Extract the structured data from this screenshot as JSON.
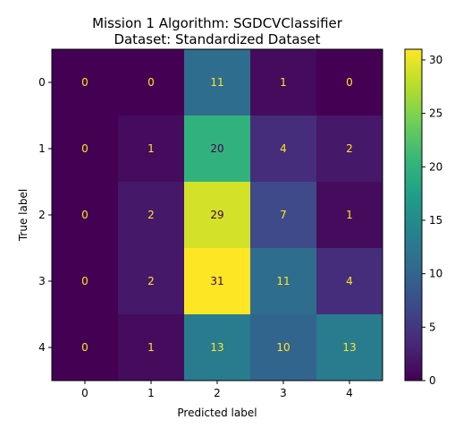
{
  "chart_data": {
    "type": "heatmap",
    "title": "Mission 1 Algorithm: SGDCVClassifier",
    "subtitle": "Dataset: Standardized Dataset",
    "xlabel": "Predicted label",
    "ylabel": "True label",
    "x_categories": [
      "0",
      "1",
      "2",
      "3",
      "4"
    ],
    "y_categories": [
      "0",
      "1",
      "2",
      "3",
      "4"
    ],
    "values": [
      [
        0,
        0,
        11,
        1,
        0
      ],
      [
        0,
        1,
        20,
        4,
        2
      ],
      [
        0,
        2,
        29,
        7,
        1
      ],
      [
        0,
        2,
        31,
        11,
        4
      ],
      [
        0,
        1,
        13,
        10,
        13
      ]
    ],
    "colorbar": {
      "min": 0,
      "max": 31,
      "ticks": [
        "0",
        "5",
        "10",
        "15",
        "20",
        "25",
        "30"
      ],
      "colormap": "viridis"
    },
    "text_color_dark_bg": "#fde725",
    "text_color_light_bg": "#440154"
  }
}
